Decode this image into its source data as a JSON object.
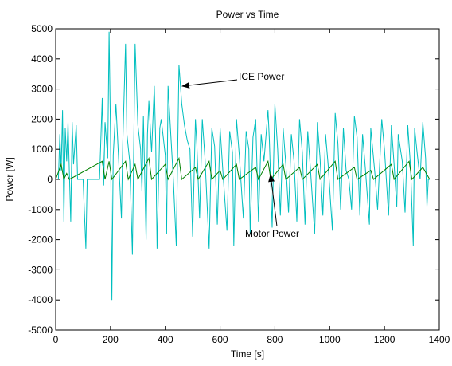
{
  "chart_data": {
    "type": "line",
    "title": "Power vs Time",
    "x_label": "Time [s]",
    "y_label": "Power [W]",
    "xlim": [
      0,
      1400
    ],
    "xticks": [
      0,
      200,
      400,
      600,
      800,
      1000,
      1200,
      1400
    ],
    "ylim": [
      -5000,
      5000
    ],
    "yticks": [
      -5000,
      -4000,
      -3000,
      -2000,
      -1000,
      0,
      1000,
      2000,
      3000,
      4000,
      5000
    ],
    "annotations": [
      "ICE Power",
      "Motor Power"
    ],
    "series": [
      {
        "color": "#00bfbf",
        "x": [
          0,
          10,
          15,
          20,
          25,
          30,
          35,
          40,
          45,
          50,
          55,
          60,
          65,
          75,
          80,
          90,
          100,
          110,
          115,
          130,
          160,
          170,
          175,
          180,
          190,
          195,
          200,
          205,
          210,
          220,
          230,
          240,
          245,
          255,
          260,
          270,
          280,
          285,
          290,
          300,
          310,
          315,
          320,
          330,
          335,
          340,
          350,
          360,
          365,
          370,
          380,
          385,
          400,
          405,
          410,
          420,
          430,
          440,
          450,
          460,
          470,
          480,
          490,
          500,
          510,
          515,
          525,
          535,
          545,
          560,
          570,
          580,
          590,
          600,
          610,
          625,
          635,
          645,
          650,
          660,
          670,
          685,
          695,
          705,
          710,
          720,
          730,
          740,
          750,
          760,
          775,
          780,
          790,
          800,
          810,
          820,
          830,
          840,
          850,
          860,
          870,
          880,
          890,
          900,
          910,
          920,
          930,
          945,
          955,
          965,
          975,
          985,
          995,
          1010,
          1020,
          1030,
          1040,
          1050,
          1060,
          1070,
          1080,
          1090,
          1100,
          1110,
          1120,
          1130,
          1145,
          1150,
          1165,
          1175,
          1190,
          1200,
          1215,
          1225,
          1235,
          1245,
          1250,
          1265,
          1275,
          1285,
          1295,
          1305,
          1310,
          1320,
          1330,
          1340,
          1350,
          1355,
          1360,
          1365
        ],
        "values": [
          0,
          0,
          1500,
          300,
          2300,
          -1400,
          1700,
          600,
          1900,
          200,
          -1400,
          1900,
          500,
          1800,
          0,
          0,
          0,
          -2300,
          0,
          0,
          0,
          2700,
          -200,
          1900,
          700,
          4900,
          1500,
          -4000,
          800,
          2500,
          600,
          -1300,
          1200,
          4500,
          1500,
          600,
          -2500,
          1100,
          4500,
          1800,
          1000,
          -400,
          2100,
          -2000,
          1500,
          2600,
          900,
          3100,
          1200,
          -2300,
          1700,
          2000,
          800,
          -1800,
          3100,
          1500,
          -100,
          -2200,
          3800,
          2500,
          1800,
          1300,
          1000,
          -1900,
          2000,
          1200,
          -1300,
          2000,
          700,
          -2300,
          1700,
          1100,
          -1500,
          1700,
          300,
          -1700,
          1600,
          900,
          -2200,
          2000,
          800,
          -1300,
          1600,
          1000,
          -1800,
          1400,
          2000,
          -1400,
          1500,
          600,
          2300,
          1300,
          -1600,
          2500,
          1000,
          -1200,
          1700,
          500,
          -1100,
          1500,
          600,
          -1400,
          2000,
          900,
          -1500,
          1600,
          300,
          -1800,
          1900,
          700,
          -1200,
          1500,
          400,
          -1700,
          2200,
          1200,
          -1000,
          1700,
          300,
          0,
          -1000,
          2100,
          1400,
          -1200,
          1500,
          400,
          -1500,
          1700,
          200,
          -1000,
          2000,
          1000,
          -1200,
          1800,
          500,
          -900,
          1500,
          600,
          -1100,
          1800,
          400,
          -2200,
          1700,
          800,
          0,
          1900,
          700,
          -900,
          0,
          0
        ]
      },
      {
        "color": "#008000",
        "x": [
          0,
          20,
          30,
          40,
          50,
          170,
          180,
          195,
          205,
          255,
          265,
          290,
          300,
          340,
          350,
          400,
          410,
          450,
          460,
          510,
          520,
          560,
          570,
          600,
          610,
          660,
          670,
          730,
          740,
          775,
          785,
          830,
          840,
          890,
          900,
          955,
          965,
          1020,
          1030,
          1090,
          1100,
          1150,
          1160,
          1225,
          1235,
          1290,
          1300,
          1340,
          1365
        ],
        "values": [
          0,
          500,
          0,
          200,
          0,
          600,
          0,
          600,
          0,
          600,
          0,
          500,
          0,
          700,
          0,
          500,
          0,
          700,
          0,
          400,
          0,
          600,
          0,
          300,
          0,
          500,
          0,
          400,
          0,
          600,
          0,
          500,
          0,
          400,
          0,
          500,
          0,
          600,
          0,
          400,
          0,
          300,
          0,
          500,
          0,
          600,
          0,
          400,
          0
        ]
      }
    ]
  }
}
